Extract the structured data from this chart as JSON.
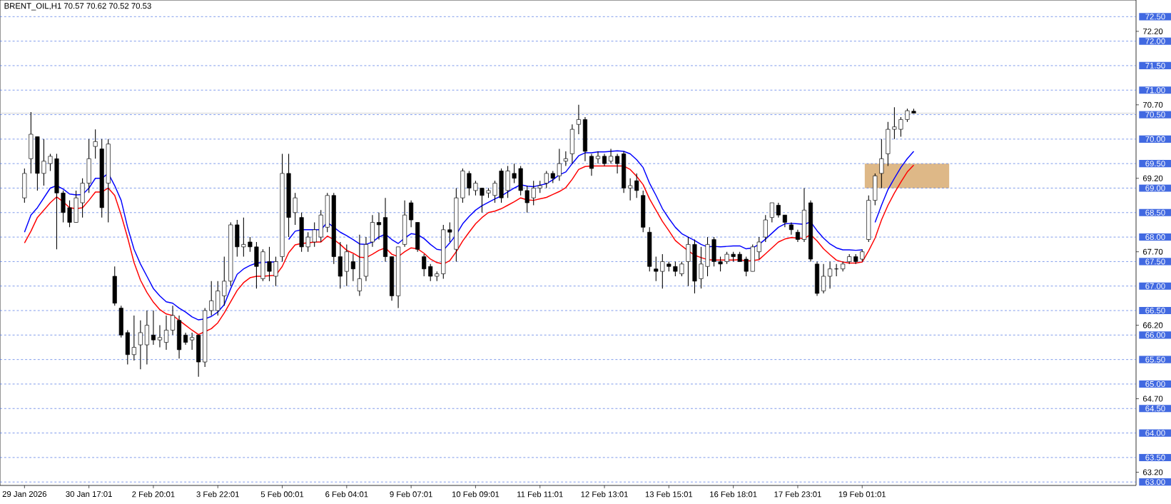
{
  "chart_data": {
    "type": "candlestick",
    "title": "BRENT_OIL,H1  70.57 70.62 70.52 70.53",
    "categories": [
      "29 Jan 2026",
      null,
      null,
      null,
      null,
      null,
      null,
      null,
      null,
      null,
      "30 Jan 17:01",
      null,
      null,
      null,
      null,
      null,
      null,
      null,
      null,
      null,
      "2 Feb 20:01",
      null,
      null,
      null,
      null,
      null,
      null,
      null,
      null,
      null,
      "3 Feb 22:01",
      null,
      null,
      null,
      null,
      null,
      null,
      null,
      null,
      null,
      "5 Feb 00:01",
      null,
      null,
      null,
      null,
      null,
      null,
      null,
      null,
      null,
      "6 Feb 04:01",
      null,
      null,
      null,
      null,
      null,
      null,
      null,
      null,
      null,
      "9 Feb 07:01",
      null,
      null,
      null,
      null,
      null,
      null,
      null,
      null,
      null,
      "10 Feb 09:01",
      null,
      null,
      null,
      null,
      null,
      null,
      null,
      null,
      null,
      "11 Feb 11:01",
      null,
      null,
      null,
      null,
      null,
      null,
      null,
      null,
      null,
      "12 Feb 13:01",
      null,
      null,
      null,
      null,
      null,
      null,
      null,
      null,
      null,
      "13 Feb 15:01",
      null,
      null,
      null,
      null,
      null,
      null,
      null,
      null,
      null,
      "16 Feb 18:01",
      null,
      null,
      null,
      null,
      null,
      null,
      null,
      null,
      null,
      "17 Feb 23:01",
      null,
      null,
      null,
      null,
      null,
      null,
      null,
      null,
      null,
      "19 Feb 01:01",
      null,
      null,
      null,
      null,
      null,
      null,
      null,
      null,
      null,
      null,
      null,
      null,
      null,
      null,
      null,
      null,
      null,
      null,
      null,
      null,
      null,
      null,
      null,
      null,
      null,
      null,
      null,
      null,
      null,
      null,
      null,
      null,
      null,
      null,
      null,
      null,
      null,
      null,
      null,
      null,
      null,
      null
    ],
    "ohlc": [
      [
        68.8,
        69.4,
        68.7,
        69.3
      ],
      [
        69.6,
        70.55,
        69.3,
        70.1
      ],
      [
        70.05,
        70.05,
        68.95,
        69.3
      ],
      [
        69.3,
        70.0,
        69.05,
        69.55
      ],
      [
        69.5,
        69.7,
        69.35,
        69.65
      ],
      [
        69.6,
        69.7,
        67.75,
        68.9
      ],
      [
        68.9,
        68.95,
        68.3,
        68.5
      ],
      [
        68.6,
        68.75,
        68.2,
        68.3
      ],
      [
        68.3,
        68.95,
        68.3,
        68.8
      ],
      [
        68.7,
        69.2,
        68.4,
        69.1
      ],
      [
        69.1,
        70.0,
        68.9,
        69.6
      ],
      [
        69.85,
        70.2,
        69.6,
        69.95
      ],
      [
        69.8,
        70.0,
        68.4,
        68.6
      ],
      [
        69.1,
        70.0,
        68.3,
        69.9
      ],
      [
        67.2,
        67.4,
        66.6,
        66.65
      ],
      [
        66.55,
        66.6,
        65.95,
        66.0
      ],
      [
        66.05,
        66.1,
        65.4,
        65.6
      ],
      [
        65.6,
        66.4,
        65.48,
        65.75
      ],
      [
        65.8,
        66.3,
        65.3,
        66.05
      ],
      [
        65.8,
        66.5,
        65.4,
        66.2
      ],
      [
        66.0,
        66.5,
        65.8,
        65.9
      ],
      [
        65.9,
        66.2,
        65.75,
        65.95
      ],
      [
        65.85,
        66.4,
        65.7,
        66.1
      ],
      [
        66.1,
        66.6,
        66.0,
        66.4
      ],
      [
        66.3,
        66.4,
        65.52,
        65.7
      ],
      [
        66.0,
        66.05,
        65.8,
        65.85
      ],
      [
        65.9,
        66.05,
        65.7,
        65.95
      ],
      [
        66.0,
        66.0,
        65.15,
        65.45
      ],
      [
        65.45,
        66.55,
        65.35,
        66.5
      ],
      [
        66.5,
        67.1,
        66.4,
        66.7
      ],
      [
        66.5,
        67.1,
        66.4,
        66.9
      ],
      [
        66.8,
        67.6,
        66.6,
        67.1
      ],
      [
        67.1,
        68.3,
        67.0,
        68.25
      ],
      [
        68.25,
        68.35,
        67.6,
        67.8
      ],
      [
        67.8,
        68.4,
        67.6,
        67.85
      ],
      [
        67.9,
        68.0,
        67.7,
        67.8
      ],
      [
        67.8,
        67.9,
        66.95,
        67.4
      ],
      [
        67.15,
        67.75,
        67.1,
        67.7
      ],
      [
        67.5,
        67.8,
        67.1,
        67.3
      ],
      [
        67.2,
        67.6,
        67.0,
        67.5
      ],
      [
        67.6,
        69.7,
        67.5,
        69.3
      ],
      [
        69.3,
        69.7,
        68.0,
        68.4
      ],
      [
        68.5,
        68.9,
        68.25,
        68.8
      ],
      [
        68.4,
        68.5,
        67.7,
        67.8
      ],
      [
        67.8,
        68.1,
        67.7,
        68.0
      ],
      [
        67.9,
        68.3,
        67.8,
        68.15
      ],
      [
        68.0,
        68.55,
        67.9,
        68.45
      ],
      [
        68.2,
        68.9,
        68.1,
        68.85
      ],
      [
        68.85,
        68.9,
        67.45,
        67.6
      ],
      [
        67.6,
        67.9,
        66.95,
        67.2
      ],
      [
        67.3,
        67.85,
        67.0,
        67.7
      ],
      [
        67.5,
        67.65,
        67.1,
        67.35
      ],
      [
        66.9,
        68.05,
        66.8,
        67.15
      ],
      [
        67.2,
        68.0,
        67.1,
        67.85
      ],
      [
        67.9,
        68.45,
        67.8,
        68.3
      ],
      [
        68.3,
        68.5,
        67.95,
        68.25
      ],
      [
        68.4,
        68.8,
        67.5,
        67.6
      ],
      [
        67.6,
        67.6,
        66.7,
        66.8
      ],
      [
        66.8,
        67.8,
        66.55,
        67.8
      ],
      [
        67.85,
        68.75,
        67.8,
        68.45
      ],
      [
        68.7,
        68.75,
        68.2,
        68.35
      ],
      [
        68.3,
        68.3,
        67.7,
        67.75
      ],
      [
        67.6,
        67.65,
        67.2,
        67.35
      ],
      [
        67.4,
        67.45,
        67.1,
        67.2
      ],
      [
        67.2,
        67.3,
        67.1,
        67.25
      ],
      [
        67.25,
        68.25,
        67.15,
        68.15
      ],
      [
        68.15,
        68.3,
        67.9,
        68.1
      ],
      [
        67.75,
        69.0,
        67.5,
        68.8
      ],
      [
        68.8,
        69.4,
        68.7,
        69.35
      ],
      [
        69.3,
        69.35,
        68.85,
        69.0
      ],
      [
        68.95,
        69.15,
        68.85,
        69.1
      ],
      [
        69.0,
        69.0,
        68.5,
        68.85
      ],
      [
        68.9,
        69.0,
        68.8,
        68.95
      ],
      [
        68.85,
        69.15,
        68.7,
        69.1
      ],
      [
        69.35,
        69.4,
        68.7,
        68.8
      ],
      [
        68.95,
        69.45,
        68.8,
        69.35
      ],
      [
        69.3,
        69.5,
        69.1,
        69.2
      ],
      [
        69.4,
        69.45,
        68.85,
        68.95
      ],
      [
        68.95,
        69.05,
        68.5,
        68.7
      ],
      [
        68.8,
        69.15,
        68.65,
        69.0
      ],
      [
        69.0,
        69.15,
        68.9,
        69.05
      ],
      [
        69.1,
        69.35,
        69.0,
        69.3
      ],
      [
        69.3,
        69.35,
        69.1,
        69.2
      ],
      [
        69.25,
        69.8,
        69.15,
        69.5
      ],
      [
        69.55,
        69.75,
        69.45,
        69.6
      ],
      [
        69.7,
        70.3,
        69.5,
        70.2
      ],
      [
        70.3,
        70.7,
        70.1,
        70.4
      ],
      [
        70.4,
        70.45,
        69.55,
        69.75
      ],
      [
        69.65,
        69.7,
        69.25,
        69.4
      ],
      [
        69.6,
        69.75,
        69.5,
        69.65
      ],
      [
        69.65,
        69.7,
        69.45,
        69.5
      ],
      [
        69.55,
        69.8,
        69.5,
        69.65
      ],
      [
        69.65,
        69.7,
        69.3,
        69.5
      ],
      [
        69.7,
        69.75,
        68.9,
        69.0
      ],
      [
        69.0,
        69.2,
        68.75,
        69.05
      ],
      [
        69.15,
        69.3,
        68.8,
        68.95
      ],
      [
        68.85,
        68.95,
        68.1,
        68.2
      ],
      [
        68.1,
        68.2,
        67.3,
        67.4
      ],
      [
        67.35,
        67.6,
        67.1,
        67.3
      ],
      [
        67.3,
        67.65,
        66.95,
        67.5
      ],
      [
        67.45,
        67.5,
        67.3,
        67.4
      ],
      [
        67.4,
        67.5,
        67.2,
        67.3
      ],
      [
        67.25,
        67.5,
        67.2,
        67.45
      ],
      [
        67.5,
        68.0,
        67.0,
        67.85
      ],
      [
        67.85,
        67.95,
        66.85,
        67.1
      ],
      [
        67.15,
        67.8,
        66.95,
        67.45
      ],
      [
        67.4,
        68.0,
        67.2,
        67.85
      ],
      [
        67.95,
        68.0,
        67.4,
        67.5
      ],
      [
        67.5,
        67.6,
        67.3,
        67.45
      ],
      [
        67.5,
        67.7,
        67.45,
        67.65
      ],
      [
        67.65,
        67.7,
        67.5,
        67.6
      ],
      [
        67.65,
        67.7,
        67.5,
        67.5
      ],
      [
        67.55,
        67.6,
        67.2,
        67.3
      ],
      [
        67.3,
        67.85,
        67.3,
        67.8
      ],
      [
        67.7,
        68.0,
        67.55,
        67.9
      ],
      [
        68.0,
        68.45,
        67.9,
        68.35
      ],
      [
        68.4,
        68.7,
        68.3,
        68.7
      ],
      [
        68.65,
        68.7,
        68.4,
        68.45
      ],
      [
        68.45,
        68.45,
        68.2,
        68.3
      ],
      [
        68.25,
        68.3,
        68.05,
        68.15
      ],
      [
        68.1,
        68.15,
        67.9,
        67.95
      ],
      [
        67.95,
        69.0,
        67.9,
        68.55
      ],
      [
        68.7,
        68.75,
        67.5,
        67.55
      ],
      [
        67.45,
        67.5,
        66.8,
        66.85
      ],
      [
        66.9,
        67.45,
        66.85,
        67.2
      ],
      [
        67.2,
        67.5,
        66.95,
        67.35
      ],
      [
        67.35,
        67.45,
        67.2,
        67.35
      ],
      [
        67.35,
        67.5,
        67.3,
        67.45
      ],
      [
        67.5,
        67.65,
        67.45,
        67.6
      ],
      [
        67.6,
        67.65,
        67.45,
        67.5
      ],
      [
        67.55,
        67.75,
        67.5,
        67.7
      ],
      [
        67.95,
        68.85,
        67.9,
        68.75
      ],
      [
        68.75,
        69.3,
        68.65,
        69.25
      ],
      [
        69.3,
        70.0,
        69.0,
        69.6
      ],
      [
        69.7,
        70.35,
        69.45,
        70.2
      ],
      [
        70.2,
        70.65,
        70.0,
        70.25
      ],
      [
        70.2,
        70.45,
        70.05,
        70.4
      ],
      [
        70.4,
        70.62,
        70.35,
        70.58
      ],
      [
        70.57,
        70.62,
        70.52,
        70.53
      ],
      null,
      null,
      null,
      null,
      null,
      null,
      null,
      null,
      null,
      null,
      null,
      null,
      null,
      null,
      null,
      null,
      null,
      null,
      null,
      null,
      null,
      null,
      null,
      null,
      null,
      null,
      null,
      null,
      null,
      null,
      null,
      null,
      null,
      null
    ],
    "series": [
      {
        "type": "line",
        "color": "#0000ff",
        "values": [
          68.1,
          68.45,
          68.6,
          68.8,
          69.0,
          69.05,
          68.98,
          68.88,
          68.86,
          68.87,
          69.0,
          69.2,
          69.2,
          69.3,
          69.05,
          68.75,
          68.2,
          67.75,
          67.45,
          67.2,
          66.95,
          66.8,
          66.68,
          66.65,
          66.55,
          66.47,
          66.37,
          66.31,
          66.33,
          66.38,
          66.47,
          66.62,
          66.95,
          67.24,
          67.35,
          67.42,
          67.47,
          67.48,
          67.49,
          67.49,
          null,
          67.95,
          68.12,
          68.15,
          68.15,
          68.15,
          68.15,
          68.3,
          68.2,
          68.1,
          68.03,
          67.95,
          67.86,
          67.85,
          67.9,
          68.0,
          68.06,
          67.95,
          67.87,
          67.98,
          68.07,
          68.05,
          67.97,
          67.85,
          67.75,
          67.73,
          67.88,
          68.05,
          68.27,
          68.42,
          68.55,
          68.64,
          68.71,
          68.78,
          68.84,
          68.92,
          69.0,
          69.07,
          69.04,
          69.03,
          69.06,
          69.09,
          69.17,
          69.27,
          69.33,
          69.5,
          69.66,
          69.72,
          69.72,
          69.74,
          69.74,
          69.75,
          69.76,
          69.75,
          69.7,
          69.58,
          69.42,
          69.1,
          68.85,
          68.58,
          68.38,
          68.2,
          68.07,
          68.0,
          67.93,
          67.85,
          67.8,
          67.81,
          67.8,
          67.81,
          67.82,
          67.82,
          67.76,
          67.78,
          67.85,
          67.96,
          68.08,
          68.2,
          68.27,
          68.28,
          68.27,
          68.26,
          68.31,
          68.13,
          67.98,
          67.86,
          67.78,
          67.74,
          67.74,
          67.73,
          67.74,
          null,
          68.3,
          68.65,
          68.97,
          69.2,
          69.42,
          69.6,
          69.75,
          null,
          null,
          null,
          null,
          null,
          null,
          null,
          null,
          null,
          null,
          null,
          null,
          null,
          null,
          null,
          null,
          null,
          null,
          null,
          null,
          null,
          null,
          null,
          null,
          null,
          null,
          null,
          null,
          null,
          null,
          null,
          null,
          null,
          null
        ]
      },
      {
        "type": "line",
        "color": "#ff0000",
        "values": [
          67.88,
          68.12,
          68.4,
          68.55,
          68.7,
          68.82,
          68.72,
          68.6,
          68.58,
          68.6,
          68.75,
          68.92,
          68.92,
          69.0,
          68.85,
          68.45,
          67.99,
          67.48,
          67.12,
          66.87,
          66.67,
          66.52,
          66.43,
          66.4,
          66.3,
          66.2,
          66.1,
          66.01,
          66.07,
          66.13,
          66.25,
          66.45,
          66.68,
          66.91,
          67.07,
          67.17,
          67.2,
          67.2,
          67.21,
          67.22,
          67.4,
          67.68,
          67.84,
          67.87,
          67.88,
          67.9,
          67.9,
          68.02,
          67.95,
          67.85,
          67.73,
          67.67,
          67.59,
          67.58,
          67.65,
          67.73,
          67.78,
          67.65,
          67.6,
          67.7,
          67.78,
          67.76,
          67.67,
          67.55,
          67.48,
          67.45,
          67.52,
          67.7,
          67.92,
          68.1,
          68.27,
          68.4,
          68.5,
          68.53,
          68.58,
          68.65,
          68.72,
          68.8,
          68.76,
          68.75,
          68.78,
          68.81,
          68.87,
          68.93,
          69.01,
          69.18,
          69.38,
          69.44,
          69.45,
          69.45,
          69.45,
          69.45,
          69.45,
          69.45,
          69.38,
          69.24,
          69.07,
          68.78,
          68.55,
          68.32,
          68.13,
          67.93,
          67.82,
          67.72,
          67.63,
          67.58,
          67.54,
          67.53,
          67.53,
          67.53,
          67.53,
          67.54,
          67.51,
          67.52,
          67.54,
          67.66,
          67.78,
          67.9,
          67.96,
          67.99,
          67.98,
          67.97,
          68.05,
          67.92,
          67.76,
          67.64,
          67.53,
          67.49,
          67.47,
          67.47,
          67.49,
          67.72,
          67.98,
          68.35,
          68.65,
          68.9,
          69.12,
          69.33,
          69.47,
          null,
          null,
          null,
          null,
          null,
          null,
          null,
          null,
          null,
          null,
          null,
          null,
          null,
          null,
          null,
          null,
          null,
          null,
          null,
          null,
          null,
          null,
          null,
          null,
          null,
          null,
          null,
          null,
          null,
          null,
          null,
          null,
          null,
          null
        ]
      }
    ],
    "ylim": [
      62.93,
      72.84
    ],
    "yticks": [
      {
        "value": 72.2,
        "label": "72.20"
      },
      {
        "value": 70.7,
        "label": "70.70"
      },
      {
        "value": 69.2,
        "label": "69.20"
      },
      {
        "value": 67.7,
        "label": "67.70"
      },
      {
        "value": 66.2,
        "label": "66.20"
      },
      {
        "value": 64.7,
        "label": "64.70"
      },
      {
        "value": 63.2,
        "label": "63.20"
      }
    ],
    "ref_lines": [
      {
        "axis": "y",
        "value": 72.5,
        "label": "72.50",
        "color": "#4169e1",
        "line_style": "dashed"
      },
      {
        "axis": "y",
        "value": 72.0,
        "label": "72.00",
        "color": "#4169e1",
        "line_style": "dashed"
      },
      {
        "axis": "y",
        "value": 71.5,
        "label": "71.50",
        "color": "#4169e1",
        "line_style": "dashed"
      },
      {
        "axis": "y",
        "value": 71.0,
        "label": "71.00",
        "color": "#4169e1",
        "line_style": "dashed"
      },
      {
        "axis": "y",
        "value": 70.5,
        "label": "70.50",
        "color": "#4169e1",
        "line_style": "dashed"
      },
      {
        "axis": "y",
        "value": 70.0,
        "label": "70.00",
        "color": "#4169e1",
        "line_style": "dashed"
      },
      {
        "axis": "y",
        "value": 69.5,
        "label": "69.50",
        "color": "#4169e1",
        "line_style": "dashed"
      },
      {
        "axis": "y",
        "value": 69.0,
        "label": "69.00",
        "color": "#4169e1",
        "line_style": "dashed"
      },
      {
        "axis": "y",
        "value": 68.5,
        "label": "68.50",
        "color": "#4169e1",
        "line_style": "dashed"
      },
      {
        "axis": "y",
        "value": 68.0,
        "label": "68.00",
        "color": "#4169e1",
        "line_style": "dashed"
      },
      {
        "axis": "y",
        "value": 67.5,
        "label": "67.50",
        "color": "#4169e1",
        "line_style": "dashed"
      },
      {
        "axis": "y",
        "value": 67.0,
        "label": "67.00",
        "color": "#4169e1",
        "line_style": "dashed"
      },
      {
        "axis": "y",
        "value": 66.5,
        "label": "66.50",
        "color": "#4169e1",
        "line_style": "dashed"
      },
      {
        "axis": "y",
        "value": 66.0,
        "label": "66.00",
        "color": "#4169e1",
        "line_style": "dashed"
      },
      {
        "axis": "y",
        "value": 65.5,
        "label": "65.50",
        "color": "#4169e1",
        "line_style": "dashed"
      },
      {
        "axis": "y",
        "value": 65.0,
        "label": "65.00",
        "color": "#4169e1",
        "line_style": "dashed"
      },
      {
        "axis": "y",
        "value": 64.5,
        "label": "64.50",
        "color": "#4169e1",
        "line_style": "dashed"
      },
      {
        "axis": "y",
        "value": 64.0,
        "label": "64.00",
        "color": "#4169e1",
        "line_style": "dashed"
      },
      {
        "axis": "y",
        "value": 63.5,
        "label": "63.50",
        "color": "#4169e1",
        "line_style": "dashed"
      },
      {
        "axis": "y",
        "value": 63.0,
        "label": "63.00",
        "color": "#4169e1",
        "line_style": "dashed"
      },
      {
        "axis": "y",
        "value": 70.53,
        "color": "#c0c0c0",
        "line_style": "solid"
      }
    ],
    "bands": [
      {
        "axis": "y",
        "from": 69.0,
        "to": 69.5,
        "color": "#deb887"
      }
    ]
  }
}
